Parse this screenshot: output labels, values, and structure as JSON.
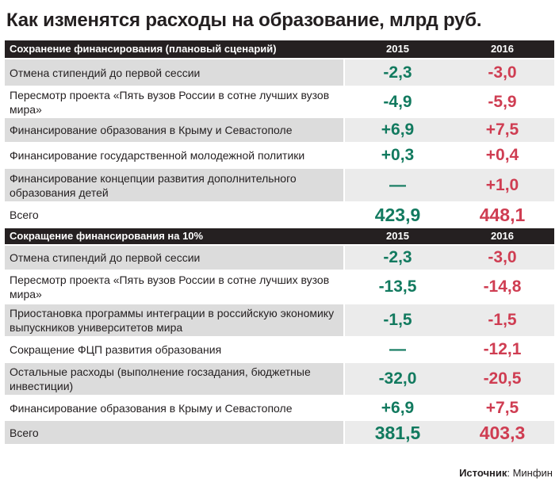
{
  "title": "Как изменятся расходы на образование, млрд руб.",
  "sections": [
    {
      "header": {
        "label": "Сохранение финансирования (плановый сценарий)",
        "y1": "2015",
        "y2": "2016"
      },
      "rows": [
        {
          "label": "Отмена стипендий до первой сессии",
          "v2015": "-2,3",
          "v2016": "-3,0"
        },
        {
          "label": "Пересмотр проекта «Пять вузов России в сотне лучших вузов мира»",
          "v2015": "-4,9",
          "v2016": "-5,9"
        },
        {
          "label": "Финансирование образования в Крыму и Севастополе",
          "v2015": "+6,9",
          "v2016": "+7,5"
        },
        {
          "label": "Финансирование государственной молодежной политики",
          "v2015": "+0,3",
          "v2016": "+0,4"
        },
        {
          "label": "Финансирование концепции развития дополнительного образования детей",
          "v2015": "—",
          "v2016": "+1,0"
        },
        {
          "label": "Всего",
          "v2015": "423,9",
          "v2016": "448,1"
        }
      ]
    },
    {
      "header": {
        "label": "Сокращение финансирования на 10%",
        "y1": "2015",
        "y2": "2016"
      },
      "rows": [
        {
          "label": "Отмена стипендий до первой сессии",
          "v2015": "-2,3",
          "v2016": "-3,0"
        },
        {
          "label": "Пересмотр проекта «Пять вузов России в сотне лучших вузов мира»",
          "v2015": "-13,5",
          "v2016": "-14,8"
        },
        {
          "label": "Приостановка программы интеграции в российскую экономику выпускников университетов мира",
          "v2015": "-1,5",
          "v2016": "-1,5"
        },
        {
          "label": "Сокращение ФЦП развития образования",
          "v2015": "—",
          "v2016": "-12,1"
        },
        {
          "label": "Остальные расходы (выполнение госзадания, бюджетные инвестиции)",
          "v2015": "-32,0",
          "v2016": "-20,5"
        },
        {
          "label": "Финансирование образования в Крыму и Севастополе",
          "v2015": "+6,9",
          "v2016": "+7,5"
        },
        {
          "label": "Всего",
          "v2015": "381,5",
          "v2016": "403,3"
        }
      ]
    }
  ],
  "source": {
    "label": "Источник",
    "value": ": Минфин"
  },
  "colors": {
    "positive_column": "#127a5f",
    "negative_column": "#cf3d52",
    "header_bg": "#252021",
    "row_shade": "#dcdcdc"
  }
}
